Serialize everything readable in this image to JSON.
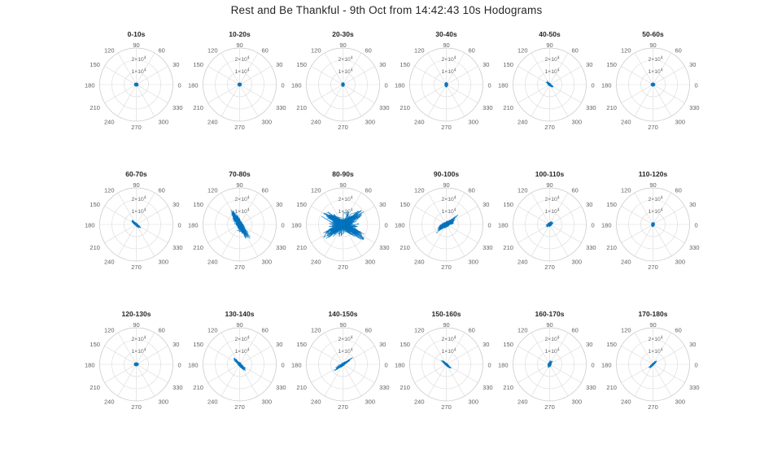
{
  "figure": {
    "title": "Rest and Be Thankful - 9th Oct from 14:42:43 10s Hodograms"
  },
  "colors": {
    "data_line": "#0072BD",
    "grid_line": "#d9d9d9",
    "outer_ring": "#c6c6c6",
    "tick_text": "#606060",
    "title_text": "#262626",
    "background": "#ffffff"
  },
  "chart_data": {
    "type": "polar-line-grid",
    "layout": {
      "rows": 3,
      "cols": 6,
      "grid": "on",
      "legend": "none"
    },
    "r_axis": {
      "max": 30000,
      "ticks": [
        10000,
        20000
      ],
      "tick_labels": [
        {
          "base": "1×10",
          "exp": "4"
        },
        {
          "base": "2×10",
          "exp": "4"
        }
      ]
    },
    "theta_axis": {
      "tick_step_deg": 30,
      "labels": [
        "0",
        "30",
        "60",
        "90",
        "120",
        "150",
        "180",
        "210",
        "240",
        "270",
        "300",
        "330"
      ]
    },
    "subplots": [
      {
        "label": "0-10s",
        "style": "dot",
        "n": 6,
        "core": {
          "a": 0,
          "maj": 0.34,
          "min": 0.3
        },
        "lobes": [
          {
            "a": 0,
            "maj": 0.2,
            "min": 0.15,
            "w": 1
          }
        ]
      },
      {
        "label": "10-20s",
        "style": "dot",
        "n": 6,
        "core": {
          "a": 0,
          "maj": 0.32,
          "min": 0.3
        },
        "lobes": [
          {
            "a": 0,
            "maj": 0.2,
            "min": 0.15,
            "w": 1
          }
        ]
      },
      {
        "label": "20-30s",
        "style": "dot",
        "n": 6,
        "core": {
          "a": 90,
          "maj": 0.34,
          "min": 0.28
        },
        "lobes": [
          {
            "a": 90,
            "maj": 0.2,
            "min": 0.15,
            "w": 1
          }
        ]
      },
      {
        "label": "30-40s",
        "style": "dot",
        "n": 6,
        "core": {
          "a": 90,
          "maj": 0.36,
          "min": 0.28
        },
        "lobes": [
          {
            "a": 90,
            "maj": 0.22,
            "min": 0.15,
            "w": 1
          }
        ]
      },
      {
        "label": "40-50s",
        "style": "streak",
        "n": 9,
        "core": {
          "a": 140,
          "maj": 0.42,
          "min": 0.2
        },
        "lobes": [
          {
            "a": 140,
            "maj": 0.4,
            "min": 0.12,
            "w": 1
          }
        ]
      },
      {
        "label": "50-60s",
        "style": "dot",
        "n": 6,
        "core": {
          "a": 0,
          "maj": 0.34,
          "min": 0.3
        },
        "lobes": [
          {
            "a": 0,
            "maj": 0.2,
            "min": 0.15,
            "w": 1
          }
        ]
      },
      {
        "label": "60-70s",
        "style": "streak",
        "n": 12,
        "core": {
          "a": 140,
          "maj": 0.55,
          "min": 0.2
        },
        "lobes": [
          {
            "a": 140,
            "maj": 0.55,
            "min": 0.14,
            "w": 1
          }
        ]
      },
      {
        "label": "70-80s",
        "style": "dense-streak",
        "n": 48,
        "core": {
          "a": 122,
          "maj": 0.95,
          "min": 0.3
        },
        "lobes": [
          {
            "a": 122,
            "maj": 1.5,
            "min": 0.3,
            "w": 3
          },
          {
            "a": 118,
            "maj": 0.85,
            "min": 0.5,
            "w": 1
          }
        ]
      },
      {
        "label": "80-90s",
        "style": "chaotic",
        "n": 75,
        "core": {
          "a": 30,
          "maj": 0.75,
          "min": 0.55
        },
        "lobes": [
          {
            "a": 32,
            "maj": 2.1,
            "min": 0.45,
            "w": 3
          },
          {
            "a": 148,
            "maj": 2.25,
            "min": 0.5,
            "w": 3
          },
          {
            "a": 70,
            "maj": 1.35,
            "min": 0.6,
            "w": 1
          },
          {
            "a": 0,
            "maj": 1.5,
            "min": 0.5,
            "w": 1
          }
        ]
      },
      {
        "label": "90-100s",
        "style": "dense-streak",
        "n": 28,
        "core": {
          "a": 28,
          "maj": 0.6,
          "min": 0.35
        },
        "lobes": [
          {
            "a": 28,
            "maj": 0.85,
            "min": 0.3,
            "w": 3
          },
          {
            "a": 40,
            "maj": 1.25,
            "min": 0.12,
            "w": 1
          }
        ]
      },
      {
        "label": "100-110s",
        "style": "blob",
        "n": 10,
        "core": {
          "a": 30,
          "maj": 0.42,
          "min": 0.3
        },
        "lobes": [
          {
            "a": 30,
            "maj": 0.38,
            "min": 0.2,
            "w": 1
          }
        ]
      },
      {
        "label": "110-120s",
        "style": "dot",
        "n": 7,
        "core": {
          "a": 80,
          "maj": 0.34,
          "min": 0.28
        },
        "lobes": [
          {
            "a": 80,
            "maj": 0.25,
            "min": 0.16,
            "w": 1
          }
        ]
      },
      {
        "label": "120-130s",
        "style": "dot",
        "n": 7,
        "core": {
          "a": 0,
          "maj": 0.36,
          "min": 0.3
        },
        "lobes": [
          {
            "a": 0,
            "maj": 0.22,
            "min": 0.16,
            "w": 1
          }
        ]
      },
      {
        "label": "130-140s",
        "style": "streak",
        "n": 18,
        "core": {
          "a": 135,
          "maj": 0.72,
          "min": 0.2
        },
        "lobes": [
          {
            "a": 135,
            "maj": 0.8,
            "min": 0.16,
            "w": 1
          }
        ]
      },
      {
        "label": "140-150s",
        "style": "streak",
        "n": 18,
        "core": {
          "a": 33,
          "maj": 0.65,
          "min": 0.2
        },
        "lobes": [
          {
            "a": 33,
            "maj": 0.75,
            "min": 0.16,
            "w": 3
          },
          {
            "a": 36,
            "maj": 1.0,
            "min": 0.07,
            "w": 1
          }
        ]
      },
      {
        "label": "150-160s",
        "style": "streak",
        "n": 14,
        "core": {
          "a": 140,
          "maj": 0.5,
          "min": 0.17
        },
        "lobes": [
          {
            "a": 140,
            "maj": 0.55,
            "min": 0.13,
            "w": 1
          }
        ]
      },
      {
        "label": "160-170s",
        "style": "blob",
        "n": 10,
        "core": {
          "a": 70,
          "maj": 0.38,
          "min": 0.28
        },
        "lobes": [
          {
            "a": 70,
            "maj": 0.34,
            "min": 0.2,
            "w": 1
          }
        ]
      },
      {
        "label": "170-180s",
        "style": "streak",
        "n": 11,
        "core": {
          "a": 45,
          "maj": 0.42,
          "min": 0.16
        },
        "lobes": [
          {
            "a": 45,
            "maj": 0.45,
            "min": 0.11,
            "w": 1
          }
        ]
      }
    ]
  }
}
